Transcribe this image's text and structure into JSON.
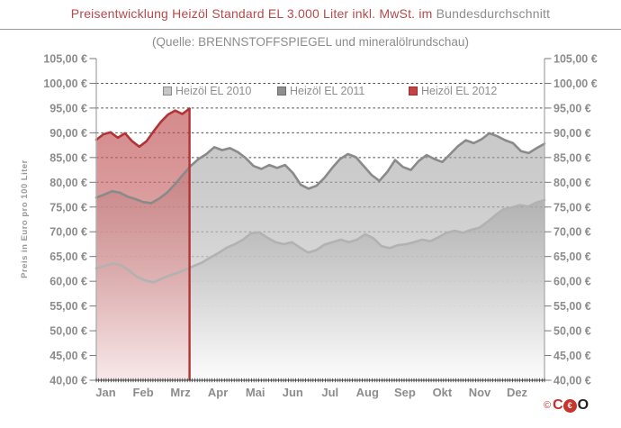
{
  "title": {
    "highlight": "Preisentwicklung Heizöl Standard EL 3.000 Liter inkl. MwSt. im",
    "rest": "Bundesdurchschnitt"
  },
  "subtitle": "(Quelle: BRENNSTOFFSPIEGEL  und mineralölrundschau)",
  "legend": {
    "position": "top-inside",
    "items": [
      {
        "label": "Heizöl EL 2010",
        "swatch_fill": "#c6c6c6",
        "swatch_border": "#8a8a8a"
      },
      {
        "label": "Heizöl EL 2011",
        "swatch_fill": "#8f8f8f",
        "swatch_border": "#6e6e6e"
      },
      {
        "label": "Heizöl EL 2012",
        "swatch_fill": "#c24345",
        "swatch_border": "#993132"
      }
    ]
  },
  "watermark": {
    "copyright": "©",
    "letter_c": "C",
    "badge": "€",
    "letter_o": "O"
  },
  "chart_data": {
    "type": "area",
    "title": "Preisentwicklung Heizöl Standard EL 3.000 Liter inkl. MwSt. im Bundesdurchschnitt",
    "source_note": "(Quelle: BRENNSTOFFSPIEGEL  und mineralölrundschau)",
    "ylabel": "Preis in Euro pro 100 Liter",
    "xlabel": "",
    "ylim": [
      40,
      105
    ],
    "ytick_step": 5,
    "ytick_labels": [
      "40,00 €",
      "45,00 €",
      "50,00 €",
      "55,00 €",
      "60,00 €",
      "65,00 €",
      "70,00 €",
      "75,00 €",
      "80,00 €",
      "85,00 €",
      "90,00 €",
      "95,00 €",
      "100,00 €",
      "105,00 €"
    ],
    "months": [
      "Jan",
      "Feb",
      "Mrz",
      "Apr",
      "Mai",
      "Jun",
      "Jul",
      "Aug",
      "Sep",
      "Okt",
      "Nov",
      "Dez"
    ],
    "grid": "dashed-horizontal",
    "axis_color": "#b0b0b0",
    "grid_color": "#4a4a4a",
    "label_color": "#8c8c8c",
    "series": [
      {
        "name": "Heizöl EL 2010",
        "line_color": "#b2b2b2",
        "fill_from": "rgba(122,122,122,0.55)",
        "fill_to": "rgba(252,252,252,0.92)",
        "t_start": 0,
        "t_end": 1,
        "end_marker": false,
        "values": [
          62.6,
          63.1,
          63.6,
          63.3,
          62.2,
          60.9,
          60.2,
          59.8,
          60.5,
          61.2,
          61.7,
          62.4,
          63.1,
          63.8,
          64.8,
          65.7,
          66.8,
          67.5,
          68.4,
          69.7,
          69.9,
          68.8,
          67.9,
          67.5,
          67.9,
          66.8,
          65.8,
          66.3,
          67.4,
          67.9,
          68.4,
          67.9,
          68.4,
          69.5,
          68.7,
          67.1,
          66.7,
          67.3,
          67.5,
          67.9,
          68.4,
          68.1,
          68.9,
          69.8,
          70.2,
          69.8,
          70.4,
          70.8,
          72.0,
          73.4,
          74.6,
          74.9,
          75.4,
          75.1,
          75.9,
          76.4
        ]
      },
      {
        "name": "Heizöl EL 2011",
        "line_color": "#8a8a8a",
        "fill_from": "rgba(150,150,150,0.50)",
        "fill_to": "rgba(252,252,252,1)",
        "t_start": 0,
        "t_end": 1,
        "end_marker": false,
        "values": [
          76.9,
          77.5,
          78.2,
          77.9,
          77.1,
          76.6,
          76.0,
          75.8,
          76.7,
          77.9,
          79.6,
          81.5,
          83.3,
          84.7,
          85.7,
          87.1,
          86.5,
          86.9,
          86.1,
          84.9,
          83.3,
          82.7,
          83.5,
          82.9,
          83.5,
          81.9,
          79.5,
          78.7,
          79.3,
          80.9,
          82.9,
          84.7,
          85.7,
          85.1,
          83.3,
          81.5,
          80.3,
          82.1,
          84.5,
          83.1,
          82.5,
          84.3,
          85.5,
          84.7,
          84.1,
          85.7,
          87.3,
          88.5,
          87.9,
          88.7,
          89.9,
          89.3,
          88.5,
          87.9,
          86.3,
          85.9,
          86.9,
          87.8
        ]
      },
      {
        "name": "Heizöl EL 2012",
        "line_color": "#b23335",
        "fill_from": "rgba(184,62,64,0.60)",
        "fill_to": "rgba(247,231,232,0.95)",
        "t_start": 0,
        "t_end": 0.208,
        "end_marker": true,
        "values": [
          88.6,
          89.7,
          90.1,
          89.0,
          89.9,
          88.3,
          87.2,
          88.3,
          90.3,
          92.2,
          93.7,
          94.5,
          93.8,
          94.9
        ]
      }
    ]
  }
}
